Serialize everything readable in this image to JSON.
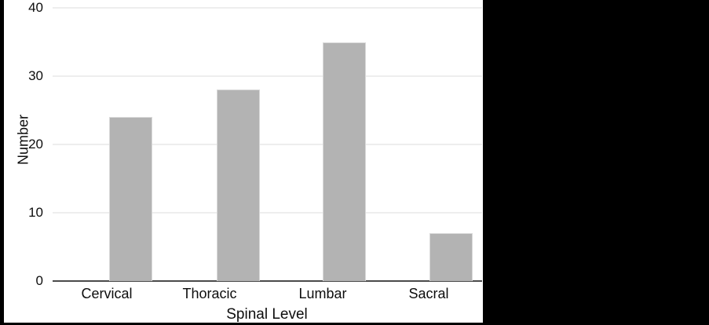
{
  "chart_data": {
    "type": "bar",
    "categories": [
      "Cervical",
      "Thoracic",
      "Lumbar",
      "Sacral"
    ],
    "values": [
      24,
      28,
      35,
      7
    ],
    "title": "",
    "xlabel": "Spinal Level",
    "ylabel": "Number",
    "ylim": [
      0,
      40
    ],
    "yticks": [
      0,
      10,
      20,
      30,
      40
    ],
    "grid": true,
    "legend": false,
    "colors": {
      "bar_fill": "#b3b3b3",
      "bar_border": "#d9d9d9",
      "gridline": "#eeeeee",
      "axis_line": "#4a4a4a",
      "text": "#0d0d0d",
      "background": "#ffffff",
      "letterbox": "#000000"
    }
  }
}
